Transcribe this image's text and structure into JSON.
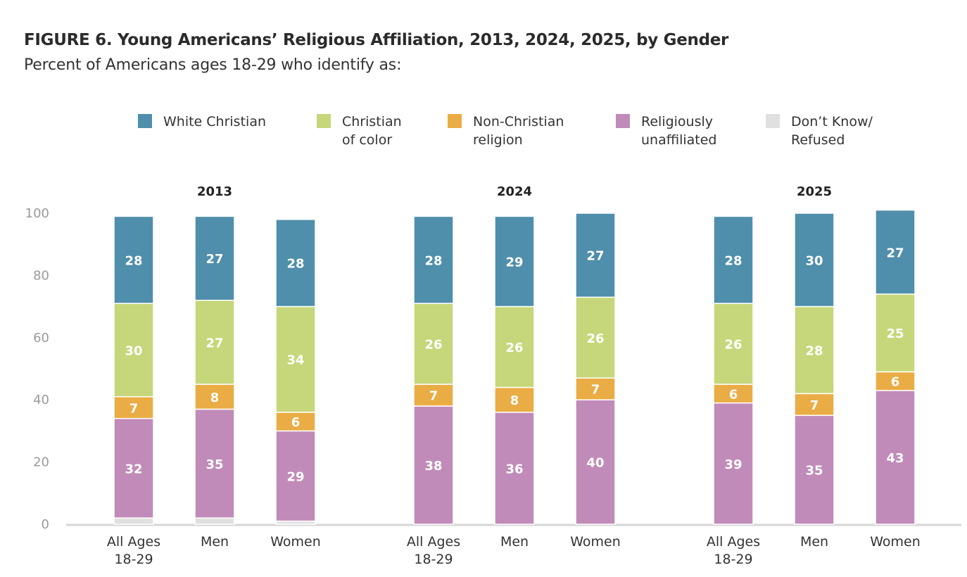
{
  "chart_data": {
    "type": "bar",
    "stacked": true,
    "title": "FIGURE 6. Young Americans’ Religious Affiliation, 2013, 2024, 2025, by Gender",
    "subtitle": "Percent of Americans ages 18-29 who identify as:",
    "xlabel": "",
    "ylabel": "",
    "ylim": [
      0,
      100
    ],
    "yticks": [
      0,
      20,
      40,
      60,
      80,
      100
    ],
    "grid": false,
    "legend_position": "top",
    "groups": [
      "2013",
      "2024",
      "2025"
    ],
    "categories": [
      "All Ages\n18-29",
      "Men",
      "Women"
    ],
    "series": [
      {
        "name": "Don’t Know/\nRefused",
        "color": "#e0e0e0",
        "label_values": false,
        "values": [
          [
            2,
            2,
            1
          ],
          [
            0,
            0,
            0
          ],
          [
            0,
            0,
            0
          ]
        ]
      },
      {
        "name": "Religiously\nunaffiliated",
        "color": "#c18bb9",
        "label_values": true,
        "values": [
          [
            32,
            35,
            29
          ],
          [
            38,
            36,
            40
          ],
          [
            39,
            35,
            43
          ]
        ]
      },
      {
        "name": "Non-Christian\nreligion",
        "color": "#eaac44",
        "label_values": true,
        "values": [
          [
            7,
            8,
            6
          ],
          [
            7,
            8,
            7
          ],
          [
            6,
            7,
            6
          ]
        ]
      },
      {
        "name": "Christian\nof color",
        "color": "#c5d77a",
        "label_values": true,
        "values": [
          [
            30,
            27,
            34
          ],
          [
            26,
            26,
            26
          ],
          [
            26,
            28,
            25
          ]
        ]
      },
      {
        "name": "White Christian",
        "color": "#4f8fab",
        "label_values": true,
        "values": [
          [
            28,
            27,
            28
          ],
          [
            28,
            29,
            27
          ],
          [
            28,
            30,
            27
          ]
        ]
      }
    ],
    "legend_order": [
      "White Christian",
      "Christian\nof color",
      "Non-Christian\nreligion",
      "Religiously\nunaffiliated",
      "Don’t Know/\nRefused"
    ]
  }
}
